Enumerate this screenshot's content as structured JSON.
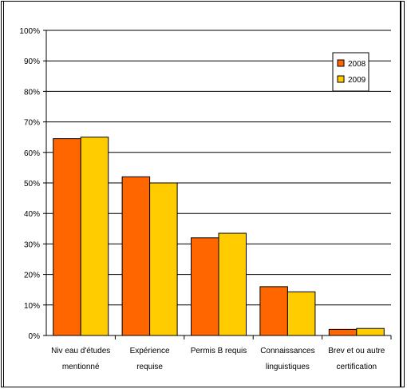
{
  "chart_data": {
    "type": "bar",
    "categories": [
      [
        "Niv eau d'études",
        "mentionné"
      ],
      [
        "Expérience",
        "requise"
      ],
      [
        "Permis B requis"
      ],
      [
        "Connaissances",
        "linguistiques"
      ],
      [
        "Brev et ou autre",
        "certification"
      ]
    ],
    "series": [
      {
        "name": "2008",
        "color": "#ff6600",
        "values": [
          64.5,
          52,
          32,
          16,
          2
        ]
      },
      {
        "name": "2009",
        "color": "#ffcc00",
        "values": [
          65,
          50,
          33.5,
          14.3,
          2.3
        ]
      }
    ],
    "ylim": [
      0,
      100
    ],
    "yticks": [
      "0%",
      "10%",
      "20%",
      "30%",
      "40%",
      "50%",
      "60%",
      "70%",
      "80%",
      "90%",
      "100%"
    ],
    "grid": true,
    "legend_position": "top-right"
  }
}
